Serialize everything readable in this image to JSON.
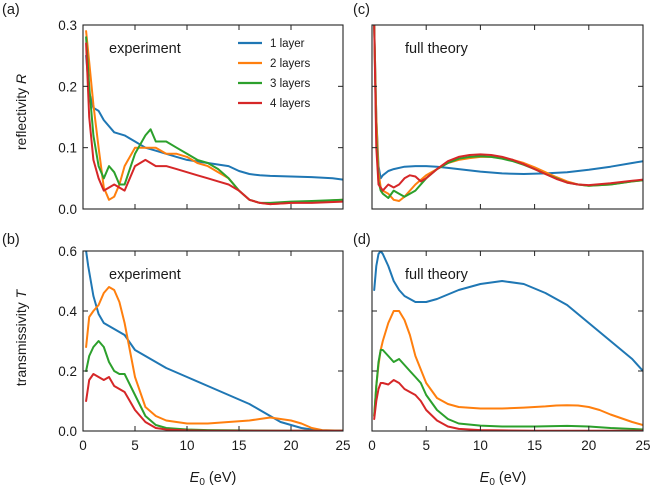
{
  "figure": {
    "panel_labels": [
      "(a)",
      "(b)",
      "(c)",
      "(d)"
    ],
    "xlabel_main": "E",
    "xlabel_sub": "0",
    "xlabel_unit": " (eV)",
    "ylabel_top": [
      "reflectivity ",
      "R"
    ],
    "ylabel_bottom": [
      "transmissivity ",
      "T"
    ]
  },
  "chart_data": [
    {
      "id": "a",
      "type": "line",
      "annotation": "experiment",
      "xlim": [
        0,
        25
      ],
      "ylim": [
        0,
        0.3
      ],
      "xticks": [
        0,
        5,
        10,
        15,
        20,
        25
      ],
      "yticks": [
        0.0,
        0.1,
        0.2,
        0.3
      ],
      "ytick_labels": [
        "0.0",
        "0.1",
        "0.2",
        "0.3"
      ],
      "legend": {
        "placement": "top-center"
      },
      "series": [
        {
          "name": "1 layer",
          "color": "#1f77b4",
          "x": [
            0.3,
            0.6,
            1,
            1.5,
            2,
            3,
            4,
            5,
            6,
            7,
            8,
            9,
            10,
            12,
            14,
            15,
            16,
            17,
            18,
            20,
            22,
            24,
            25
          ],
          "y": [
            0.25,
            0.19,
            0.165,
            0.16,
            0.145,
            0.125,
            0.12,
            0.11,
            0.1,
            0.095,
            0.09,
            0.085,
            0.08,
            0.075,
            0.07,
            0.062,
            0.057,
            0.055,
            0.054,
            0.053,
            0.052,
            0.05,
            0.048
          ]
        },
        {
          "name": "2 layers",
          "color": "#ff7f0e",
          "x": [
            0.3,
            0.6,
            1,
            1.5,
            2,
            2.5,
            3,
            3.5,
            4,
            5,
            6,
            7,
            8,
            9,
            10,
            11,
            12,
            13,
            14,
            15,
            16,
            17,
            18,
            20,
            22,
            25
          ],
          "y": [
            0.29,
            0.24,
            0.17,
            0.1,
            0.035,
            0.015,
            0.02,
            0.04,
            0.07,
            0.1,
            0.1,
            0.1,
            0.09,
            0.09,
            0.085,
            0.075,
            0.07,
            0.06,
            0.05,
            0.03,
            0.015,
            0.01,
            0.008,
            0.01,
            0.012,
            0.015
          ]
        },
        {
          "name": "3 layers",
          "color": "#2ca02c",
          "x": [
            0.3,
            0.6,
            1,
            1.5,
            2,
            2.5,
            3,
            3.5,
            4,
            5,
            6,
            6.5,
            7,
            8,
            9,
            10,
            11,
            12,
            13,
            14,
            15,
            16,
            17,
            18,
            20,
            22,
            25
          ],
          "y": [
            0.28,
            0.2,
            0.12,
            0.07,
            0.05,
            0.07,
            0.06,
            0.04,
            0.04,
            0.09,
            0.12,
            0.13,
            0.11,
            0.11,
            0.1,
            0.09,
            0.08,
            0.075,
            0.065,
            0.05,
            0.03,
            0.015,
            0.01,
            0.01,
            0.012,
            0.013,
            0.015
          ]
        },
        {
          "name": "4 layers",
          "color": "#d62728",
          "x": [
            0.3,
            0.6,
            1,
            1.5,
            2,
            3,
            4,
            5,
            6,
            7,
            8,
            9,
            10,
            11,
            12,
            13,
            14,
            15,
            16,
            17,
            18,
            20,
            22,
            25
          ],
          "y": [
            0.27,
            0.15,
            0.08,
            0.05,
            0.03,
            0.04,
            0.03,
            0.07,
            0.08,
            0.07,
            0.07,
            0.065,
            0.06,
            0.055,
            0.05,
            0.045,
            0.04,
            0.03,
            0.015,
            0.01,
            0.008,
            0.01,
            0.01,
            0.012
          ]
        }
      ]
    },
    {
      "id": "b",
      "type": "line",
      "annotation": "experiment",
      "xlim": [
        0,
        25
      ],
      "ylim": [
        0,
        0.6
      ],
      "xticks": [
        0,
        5,
        10,
        15,
        20,
        25
      ],
      "xtick_labels": [
        "0",
        "5",
        "10",
        "15",
        "20",
        "25"
      ],
      "yticks": [
        0.0,
        0.2,
        0.4,
        0.6
      ],
      "ytick_labels": [
        "0.0",
        "0.2",
        "0.4",
        "0.6"
      ],
      "series": [
        {
          "name": "1 layer",
          "color": "#1f77b4",
          "x": [
            0.3,
            0.5,
            1,
            1.5,
            2,
            3,
            4,
            5,
            6,
            8,
            10,
            12,
            14,
            16,
            17,
            18,
            19,
            20,
            21,
            22,
            23,
            25
          ],
          "y": [
            0.6,
            0.55,
            0.45,
            0.39,
            0.36,
            0.34,
            0.32,
            0.27,
            0.25,
            0.21,
            0.18,
            0.15,
            0.12,
            0.09,
            0.07,
            0.05,
            0.03,
            0.02,
            0.01,
            0.005,
            0.002,
            0.001
          ]
        },
        {
          "name": "2 layers",
          "color": "#ff7f0e",
          "x": [
            0.3,
            0.6,
            1,
            1.5,
            2,
            2.5,
            3,
            3.5,
            4,
            5,
            6,
            7,
            8,
            10,
            12,
            14,
            16,
            17,
            18,
            19,
            20,
            21,
            22,
            23,
            25
          ],
          "y": [
            0.28,
            0.38,
            0.4,
            0.42,
            0.46,
            0.48,
            0.47,
            0.43,
            0.36,
            0.18,
            0.08,
            0.05,
            0.035,
            0.025,
            0.025,
            0.03,
            0.035,
            0.04,
            0.045,
            0.04,
            0.035,
            0.025,
            0.01,
            0.003,
            0.001
          ]
        },
        {
          "name": "3 layers",
          "color": "#2ca02c",
          "x": [
            0.3,
            0.6,
            1,
            1.5,
            2,
            2.5,
            3,
            3.5,
            4,
            5,
            6,
            7,
            8,
            10,
            12,
            15,
            20,
            25
          ],
          "y": [
            0.2,
            0.25,
            0.28,
            0.3,
            0.28,
            0.23,
            0.2,
            0.19,
            0.19,
            0.12,
            0.05,
            0.02,
            0.01,
            0.005,
            0.003,
            0.002,
            0.001,
            0.001
          ]
        },
        {
          "name": "4 layers",
          "color": "#d62728",
          "x": [
            0.3,
            0.6,
            1,
            1.5,
            2,
            2.5,
            3,
            3.5,
            4,
            5,
            6,
            7,
            8,
            10,
            12,
            15,
            20,
            25
          ],
          "y": [
            0.1,
            0.17,
            0.19,
            0.18,
            0.17,
            0.18,
            0.15,
            0.14,
            0.13,
            0.07,
            0.03,
            0.01,
            0.005,
            0.002,
            0.001,
            0.001,
            0.001,
            0.001
          ]
        }
      ]
    },
    {
      "id": "c",
      "type": "line",
      "annotation": "full theory",
      "xlim": [
        0,
        25
      ],
      "ylim": [
        0,
        0.3
      ],
      "xticks": [
        0,
        5,
        10,
        15,
        20,
        25
      ],
      "yticks": [
        0.0,
        0.1,
        0.2,
        0.3
      ],
      "series": [
        {
          "name": "1 layer",
          "color": "#1f77b4",
          "x": [
            0.2,
            0.4,
            0.6,
            0.8,
            1,
            1.5,
            2,
            3,
            4,
            5,
            6,
            7,
            8,
            10,
            12,
            14,
            16,
            18,
            20,
            22,
            24,
            25
          ],
          "y": [
            0.3,
            0.15,
            0.07,
            0.05,
            0.055,
            0.062,
            0.065,
            0.069,
            0.07,
            0.07,
            0.069,
            0.067,
            0.065,
            0.061,
            0.058,
            0.057,
            0.058,
            0.06,
            0.064,
            0.069,
            0.075,
            0.078
          ]
        },
        {
          "name": "2 layers",
          "color": "#ff7f0e",
          "x": [
            0.2,
            0.4,
            0.6,
            0.8,
            1,
            1.5,
            2,
            2.5,
            3,
            4,
            5,
            6,
            7,
            8,
            9,
            10,
            11,
            12,
            13,
            14,
            15,
            16,
            17,
            18,
            19,
            20,
            22,
            24,
            25
          ],
          "y": [
            0.3,
            0.15,
            0.06,
            0.035,
            0.03,
            0.025,
            0.015,
            0.013,
            0.02,
            0.04,
            0.055,
            0.065,
            0.075,
            0.08,
            0.083,
            0.085,
            0.085,
            0.083,
            0.08,
            0.075,
            0.068,
            0.06,
            0.052,
            0.045,
            0.04,
            0.038,
            0.04,
            0.045,
            0.047
          ]
        },
        {
          "name": "3 layers",
          "color": "#2ca02c",
          "x": [
            0.2,
            0.4,
            0.6,
            0.8,
            1,
            1.5,
            2,
            2.5,
            3,
            3.5,
            4,
            5,
            6,
            7,
            8,
            9,
            10,
            11,
            12,
            13,
            14,
            15,
            16,
            17,
            18,
            19,
            20,
            22,
            24,
            25
          ],
          "y": [
            0.3,
            0.12,
            0.045,
            0.03,
            0.025,
            0.018,
            0.03,
            0.025,
            0.02,
            0.025,
            0.03,
            0.05,
            0.065,
            0.075,
            0.082,
            0.085,
            0.086,
            0.085,
            0.082,
            0.078,
            0.072,
            0.065,
            0.057,
            0.05,
            0.043,
            0.04,
            0.038,
            0.04,
            0.045,
            0.047
          ]
        },
        {
          "name": "4 layers",
          "color": "#d62728",
          "x": [
            0.2,
            0.4,
            0.6,
            0.8,
            1,
            1.5,
            2,
            2.5,
            3,
            3.5,
            4,
            4.5,
            5,
            6,
            7,
            8,
            9,
            10,
            11,
            12,
            13,
            14,
            15,
            16,
            17,
            18,
            19,
            20,
            22,
            24,
            25
          ],
          "y": [
            0.3,
            0.1,
            0.04,
            0.035,
            0.03,
            0.04,
            0.035,
            0.04,
            0.05,
            0.055,
            0.053,
            0.045,
            0.05,
            0.065,
            0.078,
            0.085,
            0.088,
            0.089,
            0.088,
            0.085,
            0.08,
            0.073,
            0.065,
            0.057,
            0.049,
            0.043,
            0.04,
            0.039,
            0.042,
            0.046,
            0.048
          ]
        }
      ]
    },
    {
      "id": "d",
      "type": "line",
      "annotation": "full theory",
      "xlim": [
        0,
        25
      ],
      "ylim": [
        0,
        0.6
      ],
      "xticks": [
        0,
        5,
        10,
        15,
        20,
        25
      ],
      "xtick_labels": [
        "0",
        "5",
        "10",
        "15",
        "20",
        "25"
      ],
      "yticks": [
        0.0,
        0.2,
        0.4,
        0.6
      ],
      "series": [
        {
          "name": "1 layer",
          "color": "#1f77b4",
          "x": [
            0.2,
            0.4,
            0.6,
            0.8,
            1,
            1.5,
            2,
            2.5,
            3,
            4,
            5,
            6,
            8,
            10,
            12,
            14,
            16,
            18,
            20,
            22,
            24,
            25
          ],
          "y": [
            0.47,
            0.55,
            0.59,
            0.6,
            0.59,
            0.55,
            0.5,
            0.47,
            0.45,
            0.43,
            0.43,
            0.44,
            0.47,
            0.49,
            0.5,
            0.49,
            0.46,
            0.42,
            0.36,
            0.3,
            0.24,
            0.2
          ]
        },
        {
          "name": "2 layers",
          "color": "#ff7f0e",
          "x": [
            0.2,
            0.4,
            0.6,
            0.8,
            1,
            1.5,
            2,
            2.5,
            3,
            3.5,
            4,
            5,
            6,
            7,
            8,
            10,
            12,
            14,
            16,
            17,
            18,
            19,
            20,
            21,
            22,
            24,
            25
          ],
          "y": [
            0.05,
            0.15,
            0.22,
            0.27,
            0.3,
            0.36,
            0.4,
            0.4,
            0.37,
            0.32,
            0.25,
            0.16,
            0.11,
            0.09,
            0.08,
            0.075,
            0.075,
            0.078,
            0.082,
            0.085,
            0.086,
            0.085,
            0.08,
            0.07,
            0.055,
            0.03,
            0.02
          ]
        },
        {
          "name": "3 layers",
          "color": "#2ca02c",
          "x": [
            0.2,
            0.4,
            0.6,
            0.8,
            1,
            1.5,
            2,
            2.5,
            3,
            3.5,
            4,
            4.5,
            5,
            6,
            7,
            8,
            10,
            12,
            15,
            18,
            20,
            22,
            25
          ],
          "y": [
            0.05,
            0.15,
            0.23,
            0.27,
            0.27,
            0.25,
            0.23,
            0.24,
            0.22,
            0.2,
            0.18,
            0.16,
            0.12,
            0.07,
            0.04,
            0.025,
            0.018,
            0.015,
            0.015,
            0.017,
            0.015,
            0.01,
            0.005
          ]
        },
        {
          "name": "4 layers",
          "color": "#d62728",
          "x": [
            0.2,
            0.4,
            0.6,
            0.8,
            1,
            1.5,
            2,
            2.5,
            3,
            3.5,
            4,
            4.5,
            5,
            6,
            7,
            8,
            10,
            12,
            15,
            20,
            25
          ],
          "y": [
            0.04,
            0.1,
            0.14,
            0.16,
            0.16,
            0.155,
            0.17,
            0.16,
            0.14,
            0.13,
            0.12,
            0.1,
            0.07,
            0.035,
            0.015,
            0.007,
            0.003,
            0.002,
            0.001,
            0.001,
            0.001
          ]
        }
      ]
    }
  ]
}
